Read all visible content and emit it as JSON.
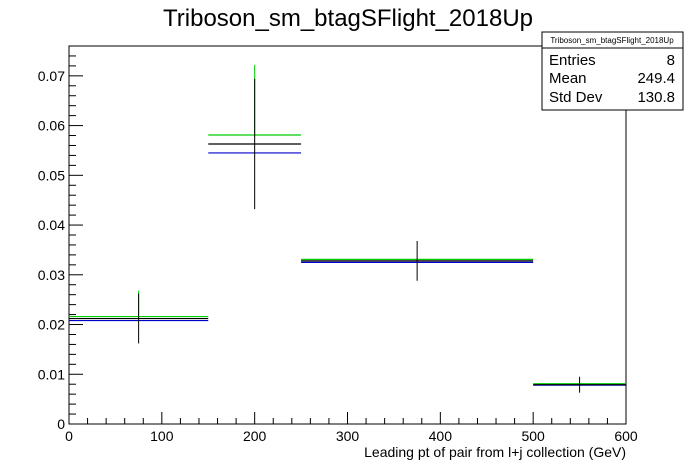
{
  "chart_data": {
    "type": "histogram",
    "title": "Triboson_sm_btagSFlight_2018Up",
    "xlabel": "Leading pt of pair from l+j collection (GeV)",
    "ylabel": "",
    "xlim": [
      0,
      600
    ],
    "ylim": [
      0,
      0.076
    ],
    "x_ticks": [
      0,
      100,
      200,
      300,
      400,
      500,
      600
    ],
    "y_ticks": [
      0,
      0.01,
      0.02,
      0.03,
      0.04,
      0.05,
      0.06,
      0.07
    ],
    "y_tick_labels": [
      "0",
      "0.01",
      "0.02",
      "0.03",
      "0.04",
      "0.05",
      "0.06",
      "0.07"
    ],
    "bins": [
      {
        "low": 0,
        "high": 150,
        "center": 75
      },
      {
        "low": 150,
        "high": 250,
        "center": 200
      },
      {
        "low": 250,
        "high": 500,
        "center": 375
      },
      {
        "low": 500,
        "high": 600,
        "center": 550
      }
    ],
    "series": [
      {
        "color": "#000000",
        "values": [
          0.0212,
          0.0563,
          0.0328,
          0.0079
        ],
        "err_low": [
          0.0162,
          0.0432,
          0.0288,
          0.0063
        ],
        "err_high": [
          0.0262,
          0.0694,
          0.0368,
          0.0095
        ]
      },
      {
        "color": "#00cc00",
        "values": [
          0.0216,
          0.0581,
          0.0331,
          0.0081
        ],
        "err_low": [
          0.0213,
          0.0578,
          0.0331,
          0.0081
        ],
        "err_high": [
          0.0268,
          0.0722,
          0.0331,
          0.0081
        ]
      },
      {
        "color": "#0000cc",
        "values": [
          0.0208,
          0.0545,
          0.0325,
          0.0078
        ],
        "err_low": [
          0.0208,
          0.0545,
          0.0325,
          0.0078
        ],
        "err_high": [
          0.0208,
          0.0545,
          0.0325,
          0.0078
        ]
      }
    ],
    "stats_box": {
      "title": "Triboson_sm_btagSFlight_2018Up",
      "rows": [
        {
          "label": "Entries",
          "value": "8"
        },
        {
          "label": "Mean",
          "value": "249.4"
        },
        {
          "label": "Std Dev",
          "value": "130.8"
        }
      ]
    },
    "grid": false,
    "legend": "none"
  }
}
